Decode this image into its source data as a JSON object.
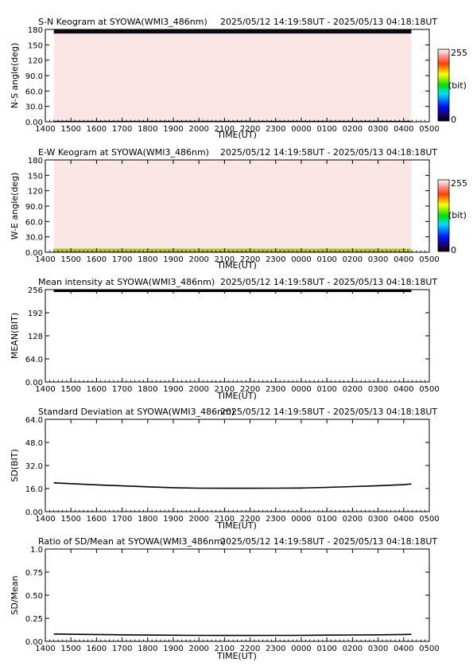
{
  "header_time": "2025/05/12 14:19:58UT - 2025/05/13 04:18:18UT",
  "time_ticks": [
    "1400",
    "1500",
    "1600",
    "1700",
    "1800",
    "1900",
    "2000",
    "2100",
    "2200",
    "2300",
    "0000",
    "0100",
    "0200",
    "0300",
    "0400",
    "0500"
  ],
  "xlabel": "TIME(UT)",
  "colorbar": {
    "max_label": "255",
    "unit_label": "(bit)",
    "min_label": "0"
  },
  "chart_data": [
    {
      "type": "heatmap",
      "title": "S-N Keogram at SYOWA(WMI3_486nm)",
      "ylabel": "N-S angle(deg)",
      "xlabel": "TIME(UT)",
      "ylim": [
        0,
        180
      ],
      "yticks": [
        "0.00",
        "30.0",
        "60.0",
        "90.0",
        "120",
        "150",
        "180"
      ],
      "x_range_hours": [
        14.0,
        29.0
      ],
      "data_range_hours": [
        14.33,
        28.3
      ],
      "bands": [
        {
          "y_from": 0,
          "y_to": 2,
          "color": "#111111"
        },
        {
          "y_from": 2,
          "y_to": 172,
          "color": "#fbe6e6"
        },
        {
          "y_from": 172,
          "y_to": 180,
          "color": "#0a0a1a"
        }
      ]
    },
    {
      "type": "heatmap",
      "title": "E-W Keogram at SYOWA(WMI3_486nm)",
      "ylabel": "W-E angle(deg)",
      "xlabel": "TIME(UT)",
      "ylim": [
        0,
        180
      ],
      "yticks": [
        "0.00",
        "30.0",
        "60.0",
        "90.0",
        "120",
        "150",
        "180"
      ],
      "x_range_hours": [
        14.0,
        29.0
      ],
      "data_range_hours": [
        14.33,
        28.3
      ],
      "bands": [
        {
          "y_from": 0,
          "y_to": 2,
          "color": "#e05a10"
        },
        {
          "y_from": 2,
          "y_to": 4,
          "color": "#e8d000"
        },
        {
          "y_from": 4,
          "y_to": 7,
          "color": "#7bd030"
        },
        {
          "y_from": 7,
          "y_to": 180,
          "color": "#fbe6e6"
        }
      ]
    },
    {
      "type": "line",
      "title": "Mean intensity at SYOWA(WMI3_486nm)",
      "ylabel": "MEAN(BIT)",
      "xlabel": "TIME(UT)",
      "ylim": [
        0,
        256
      ],
      "yticks": [
        "0.00",
        "64.0",
        "128",
        "192",
        "256"
      ],
      "x": [
        14.33,
        15,
        16,
        17,
        18,
        19,
        20,
        21,
        22,
        23,
        24,
        25,
        26,
        27,
        28,
        28.3
      ],
      "values": [
        252,
        252,
        252,
        252,
        252,
        252,
        252,
        252,
        252,
        252,
        252,
        252,
        252,
        252,
        252,
        252
      ]
    },
    {
      "type": "line",
      "title": "Standard Deviation at SYOWA(WMI3_486nm)",
      "ylabel": "SD(BIT)",
      "xlabel": "TIME(UT)",
      "ylim": [
        0,
        64
      ],
      "yticks": [
        "0.00",
        "16.0",
        "32.0",
        "48.0",
        "64.0"
      ],
      "x": [
        14.33,
        15,
        16,
        17,
        18,
        19,
        20,
        21,
        22,
        23,
        24,
        25,
        26,
        27,
        28,
        28.3
      ],
      "values": [
        20.0,
        19.4,
        18.6,
        17.9,
        17.2,
        16.6,
        16.3,
        16.2,
        16.2,
        16.3,
        16.4,
        16.8,
        17.4,
        18.0,
        18.7,
        19.2
      ]
    },
    {
      "type": "line",
      "title": "Ratio of SD/Mean at SYOWA(WMI3_486nm)",
      "ylabel": "SD/Mean",
      "xlabel": "TIME(UT)",
      "ylim": [
        0,
        1
      ],
      "yticks": [
        "0.00",
        "0.25",
        "0.50",
        "0.75",
        "1.0"
      ],
      "x": [
        14.33,
        15,
        16,
        17,
        18,
        19,
        20,
        21,
        22,
        23,
        24,
        25,
        26,
        27,
        28,
        28.3
      ],
      "values": [
        0.079,
        0.077,
        0.074,
        0.071,
        0.068,
        0.066,
        0.065,
        0.064,
        0.064,
        0.065,
        0.065,
        0.067,
        0.069,
        0.071,
        0.074,
        0.076
      ]
    }
  ]
}
